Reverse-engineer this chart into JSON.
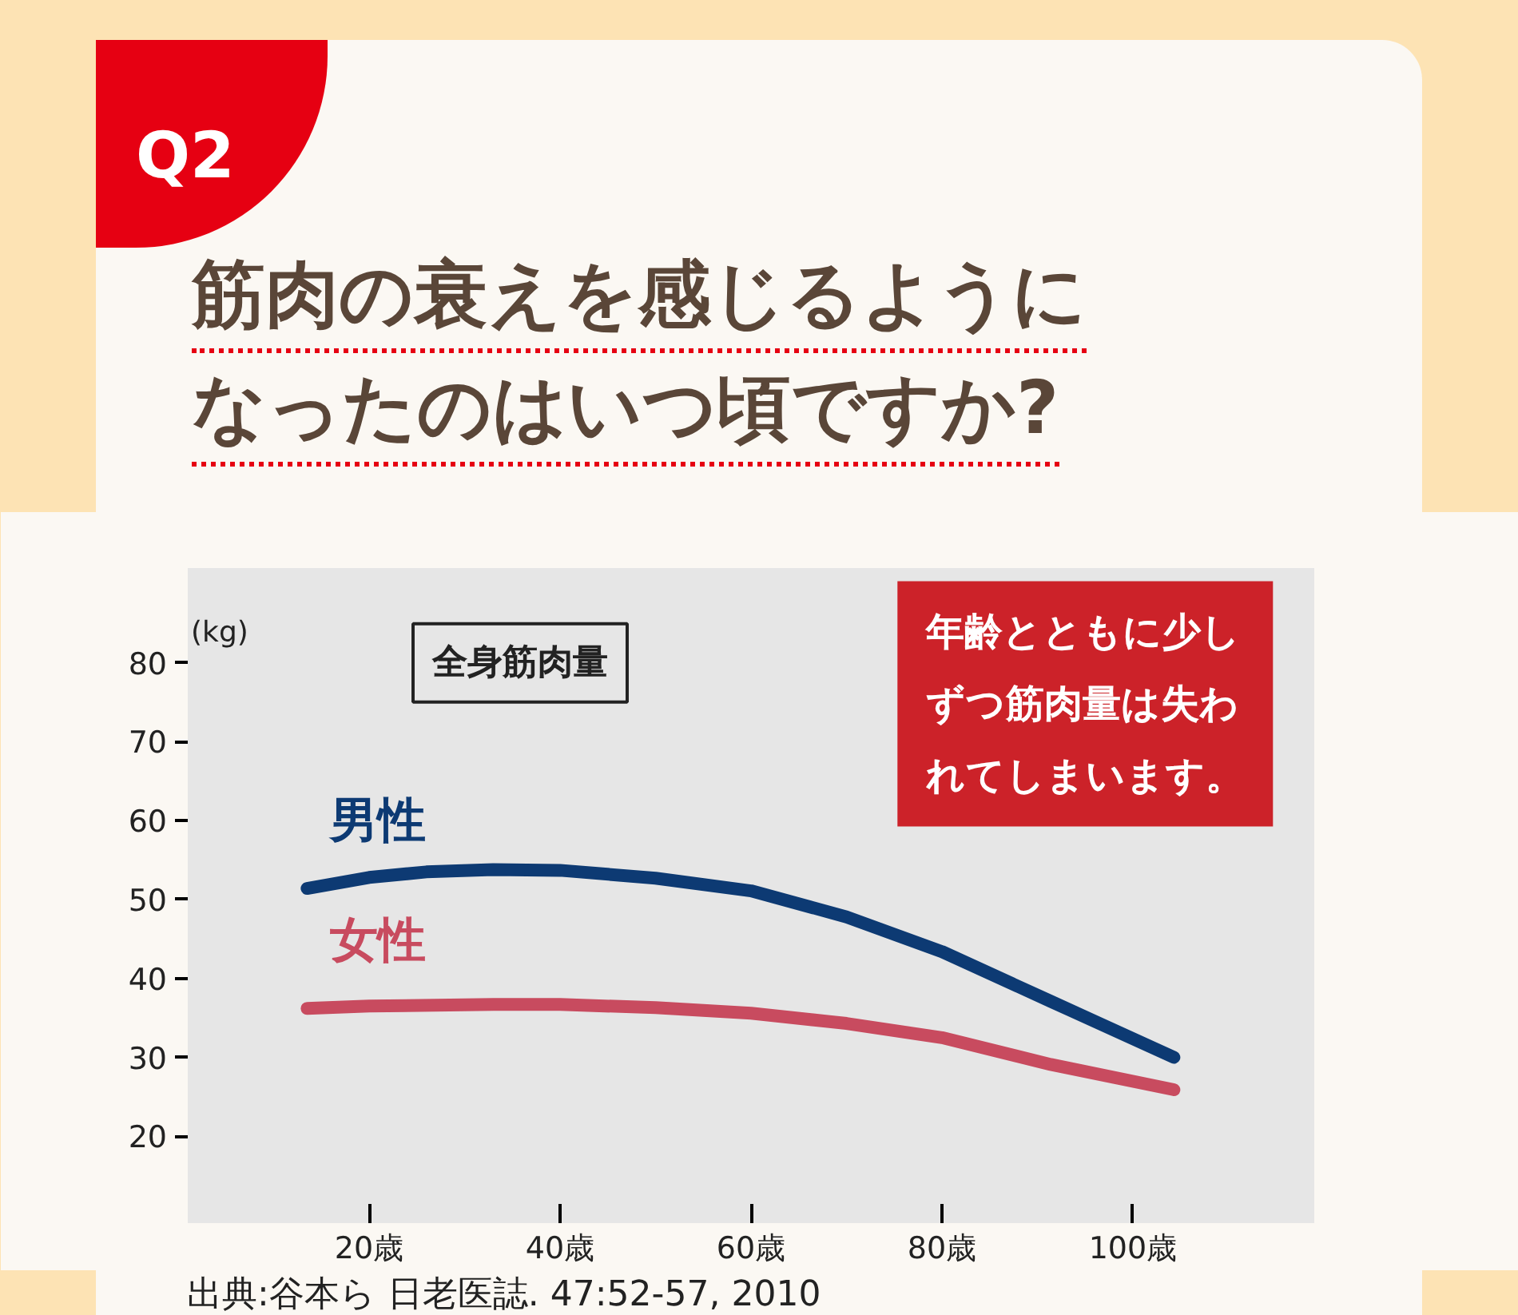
{
  "chart_data": {
    "type": "line",
    "title": "筋肉の衰えを感じるようになったのはいつ頃ですか?",
    "ylabel": "(kg)",
    "annotations": [
      "Q2",
      "全身筋肉量",
      "年齢とともに少しずつ筋肉量は失われてしまいます。",
      "出典:谷本ら 日老医誌. 47:52-57, 2010"
    ],
    "series": [
      {
        "name": "男性",
        "color": "#0d3a73",
        "x": [
          13.5,
          20,
          26,
          33,
          40,
          50,
          60,
          70,
          80,
          91.4,
          104.3
        ],
        "values": [
          51.4,
          52.8,
          53.5,
          53.8,
          53.7,
          52.7,
          51.1,
          47.8,
          43.4,
          37.1,
          30.0
        ]
      },
      {
        "name": "女性",
        "color": "#c84b5f",
        "x": [
          13.5,
          20,
          33,
          40,
          50,
          60,
          70,
          80,
          91.4,
          104.3
        ],
        "values": [
          36.2,
          36.5,
          36.7,
          36.7,
          36.3,
          35.6,
          34.3,
          32.5,
          29.1,
          25.9
        ]
      }
    ],
    "xlim": [
      1,
      119
    ],
    "ylim": [
      9,
      92
    ],
    "xticks": [
      {
        "value": 20,
        "label": "20歳"
      },
      {
        "value": 40,
        "label": "40歳"
      },
      {
        "value": 60,
        "label": "60歳"
      },
      {
        "value": 80,
        "label": "80歳"
      },
      {
        "value": 100,
        "label": "100歳"
      }
    ],
    "yticks": [
      20,
      30,
      40,
      50,
      60,
      70,
      80
    ],
    "legend": false,
    "marker": "none",
    "line_style": "solid"
  }
}
